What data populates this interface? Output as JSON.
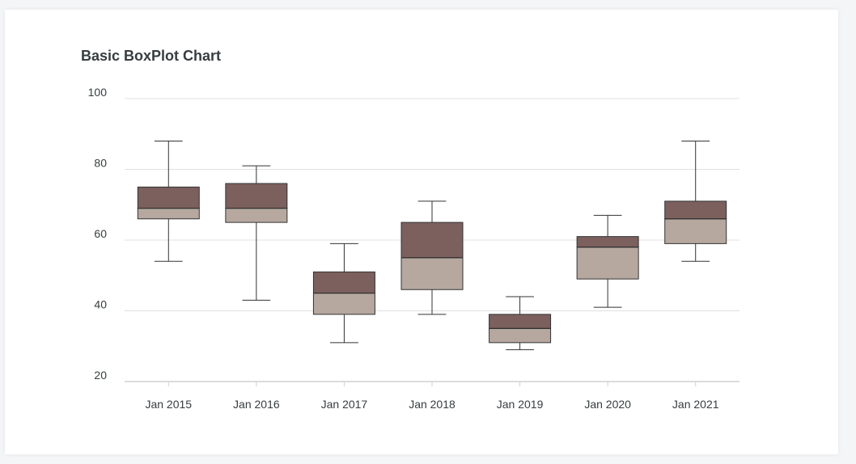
{
  "chart_data": {
    "type": "boxplot",
    "title": "Basic BoxPlot Chart",
    "xlabel": "",
    "ylabel": "",
    "ylim": [
      20,
      100
    ],
    "yticks": [
      20,
      40,
      60,
      80,
      100
    ],
    "grid": true,
    "categories": [
      "Jan 2015",
      "Jan 2016",
      "Jan 2017",
      "Jan 2018",
      "Jan 2019",
      "Jan 2020",
      "Jan 2021"
    ],
    "series": [
      {
        "values": [
          {
            "min": 54,
            "q1": 66,
            "median": 69,
            "q3": 75,
            "max": 88
          },
          {
            "min": 43,
            "q1": 65,
            "median": 69,
            "q3": 76,
            "max": 81
          },
          {
            "min": 31,
            "q1": 39,
            "median": 45,
            "q3": 51,
            "max": 59
          },
          {
            "min": 39,
            "q1": 46,
            "median": 55,
            "q3": 65,
            "max": 71
          },
          {
            "min": 29,
            "q1": 31,
            "median": 35,
            "q3": 39,
            "max": 44
          },
          {
            "min": 41,
            "q1": 49,
            "median": 58,
            "q3": 61,
            "max": 67
          },
          {
            "min": 54,
            "q1": 59,
            "median": 66,
            "q3": 71,
            "max": 88
          }
        ]
      }
    ],
    "colors": {
      "upper_box": "#7b605e",
      "lower_box": "#b6a89f",
      "stroke": "#333333",
      "grid": "#e0e0e0"
    }
  }
}
